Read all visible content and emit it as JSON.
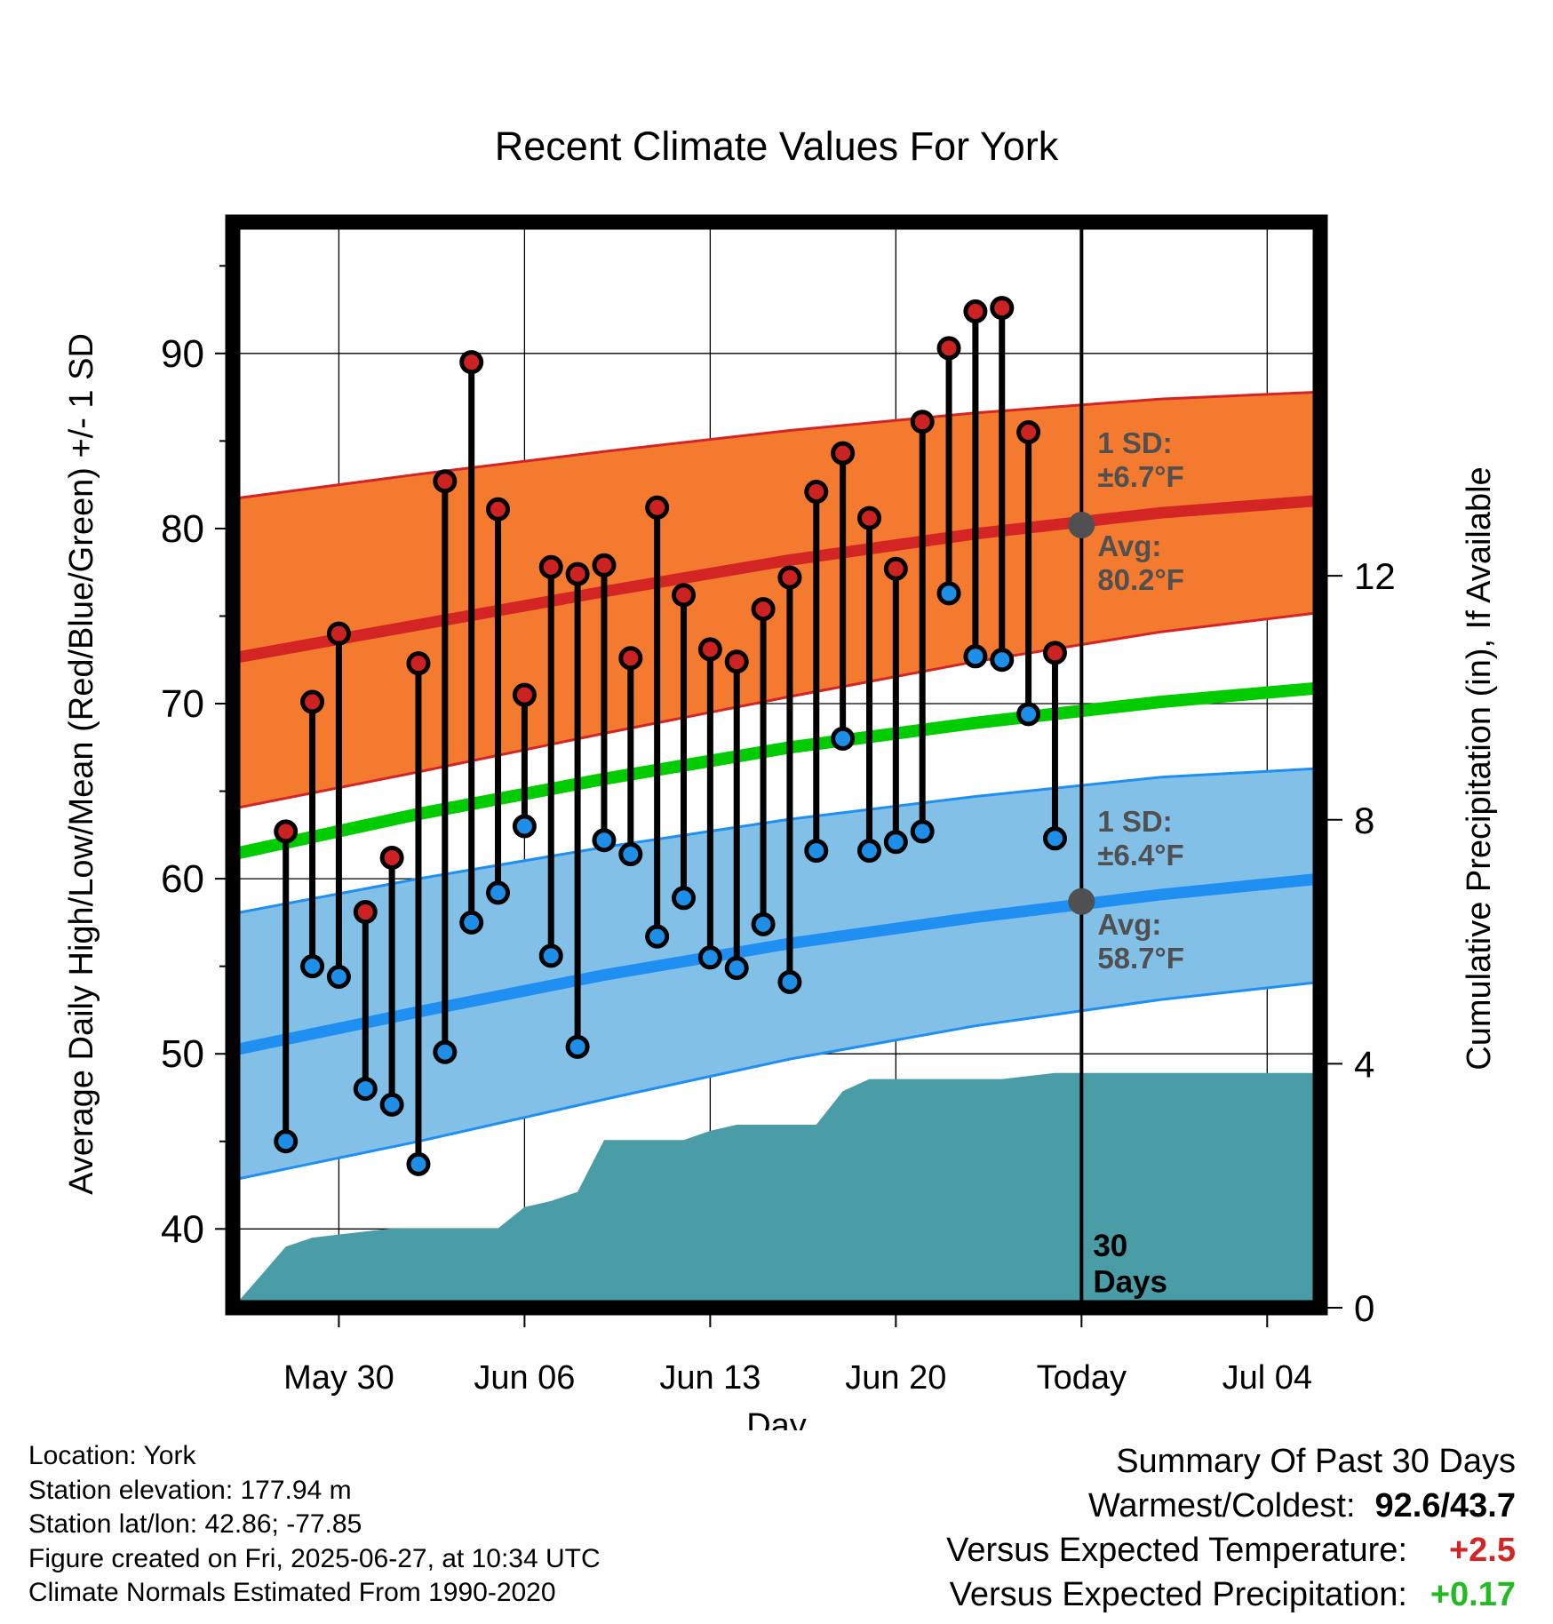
{
  "chart_data": {
    "type": "line",
    "title": "Recent Climate Values For York",
    "xlabel": "Day",
    "ylabel": "Average Daily High/Low/Mean (Red/Blue/Green) +/- 1 SD",
    "y2label": "Cumulative Precipitation (in), If Available",
    "ylim": [
      35.5,
      97.5
    ],
    "y2lim": [
      0,
      17.8
    ],
    "xlim": [
      "2025-05-26",
      "2025-07-06"
    ],
    "yticks": [
      "40",
      "50",
      "60",
      "70",
      "80",
      "90"
    ],
    "y2ticks": [
      "0",
      "4",
      "8",
      "12"
    ],
    "xticks": [
      {
        "date": "2025-05-30",
        "label": "May 30"
      },
      {
        "date": "2025-06-06",
        "label": "Jun 06"
      },
      {
        "date": "2025-06-13",
        "label": "Jun 13"
      },
      {
        "date": "2025-06-20",
        "label": "Jun 20"
      },
      {
        "date": "2025-06-27",
        "label": "Today"
      },
      {
        "date": "2025-07-04",
        "label": "Jul 04"
      }
    ],
    "grid": true,
    "today": "2025-06-27",
    "period_label": "30 Days",
    "dates": [
      "2025-05-28",
      "2025-05-29",
      "2025-05-30",
      "2025-05-31",
      "2025-06-01",
      "2025-06-02",
      "2025-06-03",
      "2025-06-04",
      "2025-06-05",
      "2025-06-06",
      "2025-06-07",
      "2025-06-08",
      "2025-06-09",
      "2025-06-10",
      "2025-06-11",
      "2025-06-12",
      "2025-06-13",
      "2025-06-14",
      "2025-06-15",
      "2025-06-16",
      "2025-06-17",
      "2025-06-18",
      "2025-06-19",
      "2025-06-20",
      "2025-06-21",
      "2025-06-22",
      "2025-06-23",
      "2025-06-24",
      "2025-06-25",
      "2025-06-26"
    ],
    "series": [
      {
        "name": "High",
        "values": [
          62.7,
          70.1,
          74.0,
          58.1,
          61.2,
          72.3,
          82.7,
          89.5,
          81.1,
          70.5,
          77.8,
          77.4,
          77.9,
          72.6,
          81.2,
          76.2,
          73.1,
          72.4,
          75.4,
          77.2,
          82.1,
          84.3,
          80.6,
          77.7,
          86.1,
          90.3,
          92.4,
          92.6,
          85.5,
          72.9
        ]
      },
      {
        "name": "Low",
        "values": [
          45.0,
          55.0,
          54.4,
          48.0,
          47.1,
          43.7,
          50.1,
          57.5,
          59.2,
          63.0,
          55.6,
          50.4,
          62.2,
          61.4,
          56.7,
          58.9,
          55.5,
          54.9,
          57.4,
          54.1,
          61.6,
          68.0,
          61.6,
          62.1,
          62.7,
          76.3,
          72.7,
          72.5,
          69.4,
          62.3
        ]
      }
    ],
    "normals": {
      "dates": [
        "2025-05-26",
        "2025-06-02",
        "2025-06-09",
        "2025-06-16",
        "2025-06-23",
        "2025-06-30",
        "2025-07-06"
      ],
      "high_avg": [
        72.6,
        74.5,
        76.4,
        78.2,
        79.7,
        80.9,
        81.6
      ],
      "high_upper": [
        81.7,
        83.1,
        84.4,
        85.6,
        86.6,
        87.4,
        87.8
      ],
      "high_lower": [
        64.0,
        66.1,
        68.3,
        70.4,
        72.4,
        74.1,
        75.2
      ],
      "low_avg": [
        50.2,
        52.4,
        54.5,
        56.3,
        57.8,
        59.1,
        60.0
      ],
      "low_upper": [
        58.0,
        60.0,
        61.8,
        63.4,
        64.7,
        65.8,
        66.3
      ],
      "low_lower": [
        42.8,
        45.0,
        47.4,
        49.7,
        51.6,
        53.1,
        54.1
      ],
      "mean_avg": [
        61.4,
        63.7,
        65.7,
        67.5,
        68.9,
        70.1,
        70.9
      ]
    },
    "precip": {
      "dates": [
        "2025-05-26",
        "2025-05-27",
        "2025-05-28",
        "2025-05-29",
        "2025-05-30",
        "2025-06-01",
        "2025-06-05",
        "2025-06-06",
        "2025-06-07",
        "2025-06-08",
        "2025-06-09",
        "2025-06-11",
        "2025-06-12",
        "2025-06-13",
        "2025-06-14",
        "2025-06-15",
        "2025-06-16",
        "2025-06-17",
        "2025-06-18",
        "2025-06-19",
        "2025-06-20",
        "2025-06-24",
        "2025-06-26",
        "2025-07-06"
      ],
      "values": [
        0.0,
        0.5,
        1.0,
        1.15,
        1.2,
        1.3,
        1.3,
        1.65,
        1.75,
        1.9,
        2.75,
        2.75,
        2.75,
        2.9,
        3.0,
        3.0,
        3.0,
        3.0,
        3.55,
        3.75,
        3.75,
        3.75,
        3.85,
        3.85
      ]
    },
    "annotations": {
      "high_sd": "1 SD:\n±6.7°F",
      "high_avg": "Avg:\n80.2°F",
      "low_sd": "1 SD:\n±6.4°F",
      "low_avg": "Avg:\n58.7°F",
      "today_high_avg": 80.2,
      "today_low_avg": 58.7
    },
    "colors": {
      "high_band": "#f47a30",
      "high_line": "#d42525",
      "low_band": "#82c0e8",
      "low_line": "#1f8ff2",
      "mean_line": "#00cc00",
      "precip": "#4a9ca6",
      "high_dot": "#cc2222",
      "low_dot": "#1e8fe8",
      "annotation": "#505050"
    }
  },
  "footer": {
    "location": "Location: York",
    "elevation": "Station elevation: 177.94 m",
    "latlon": "Station lat/lon: 42.86; -77.85",
    "created": "Figure created on Fri, 2025-06-27, at 10:34 UTC",
    "normals": "Climate Normals Estimated From 1990-2020"
  },
  "summary": {
    "heading": "Summary Of Past 30 Days",
    "warm_cold_label": "Warmest/Coldest:",
    "warm_cold_value": "92.6/43.7",
    "temp_label": "Versus Expected Temperature:",
    "temp_value": "+2.5",
    "temp_color": "#d42525",
    "precip_label": "Versus Expected Precipitation:",
    "precip_value": "+0.17",
    "precip_color": "#22bb22"
  }
}
